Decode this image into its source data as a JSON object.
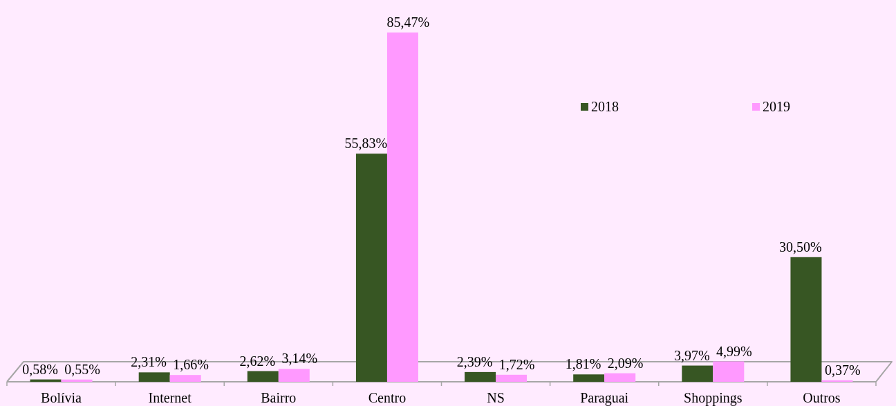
{
  "chart_data": {
    "type": "bar",
    "categories": [
      "Bolívia",
      "Internet",
      "Bairro",
      "Centro",
      "NS",
      "Paraguai",
      "Shoppings",
      "Outros"
    ],
    "series": [
      {
        "name": "2018",
        "color": "#375623",
        "values": [
          0.58,
          2.31,
          2.62,
          55.83,
          2.39,
          1.81,
          3.97,
          30.5
        ],
        "value_labels": [
          "0,58%",
          "2,31%",
          "2,62%",
          "55,83%",
          "2,39%",
          "1,81%",
          "3,97%",
          "30,50%"
        ]
      },
      {
        "name": "2019",
        "color": "#ff99ff",
        "values": [
          0.55,
          1.66,
          3.14,
          85.47,
          1.72,
          2.09,
          4.99,
          0.37
        ],
        "value_labels": [
          "0,55%",
          "1,66%",
          "3,14%",
          "85,47%",
          "1,72%",
          "2,09%",
          "4,99%",
          "0,37%"
        ]
      }
    ],
    "legend": "top right"
  }
}
